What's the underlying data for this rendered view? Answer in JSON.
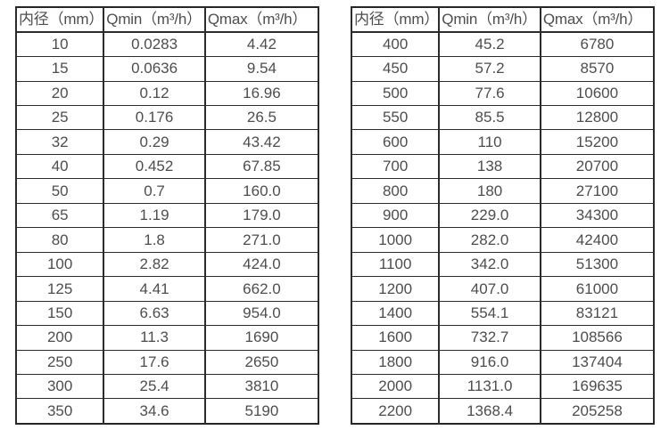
{
  "page": {
    "background": "#ffffff",
    "border_color": "#262626",
    "text_color": "#4d4d4d"
  },
  "tables": [
    {
      "name": "flow-spec-small-diameters",
      "headers": [
        "内径（mm）",
        "Qmin（m³/h）",
        "Qmax（m³/h）"
      ],
      "rows": [
        [
          "10",
          "0.0283",
          "4.42"
        ],
        [
          "15",
          "0.0636",
          "9.54"
        ],
        [
          "20",
          "0.12",
          "16.96"
        ],
        [
          "25",
          "0.176",
          "26.5"
        ],
        [
          "32",
          "0.29",
          "43.42"
        ],
        [
          "40",
          "0.452",
          "67.85"
        ],
        [
          "50",
          "0.7",
          "160.0"
        ],
        [
          "65",
          "1.19",
          "179.0"
        ],
        [
          "80",
          "1.8",
          "271.0"
        ],
        [
          "100",
          "2.82",
          "424.0"
        ],
        [
          "125",
          "4.41",
          "662.0"
        ],
        [
          "150",
          "6.63",
          "954.0"
        ],
        [
          "200",
          "11.3",
          "1690"
        ],
        [
          "250",
          "17.6",
          "2650"
        ],
        [
          "300",
          "25.4",
          "3810"
        ],
        [
          "350",
          "34.6",
          "5190"
        ]
      ]
    },
    {
      "name": "flow-spec-large-diameters",
      "headers": [
        "内径（mm）",
        "Qmin（m³/h）",
        "Qmax（m³/h）"
      ],
      "rows": [
        [
          "400",
          "45.2",
          "6780"
        ],
        [
          "450",
          "57.2",
          "8570"
        ],
        [
          "500",
          "77.6",
          "10600"
        ],
        [
          "550",
          "85.5",
          "12800"
        ],
        [
          "600",
          "110",
          "15200"
        ],
        [
          "700",
          "138",
          "20700"
        ],
        [
          "800",
          "180",
          "27100"
        ],
        [
          "900",
          "229.0",
          "34300"
        ],
        [
          "1000",
          "282.0",
          "42400"
        ],
        [
          "1100",
          "342.0",
          "51300"
        ],
        [
          "1200",
          "407.0",
          "61000"
        ],
        [
          "1400",
          "554.1",
          "83121"
        ],
        [
          "1600",
          "732.7",
          "108566"
        ],
        [
          "1800",
          "916.0",
          "137404"
        ],
        [
          "2000",
          "1131.0",
          "169635"
        ],
        [
          "2200",
          "1368.4",
          "205258"
        ]
      ]
    }
  ]
}
